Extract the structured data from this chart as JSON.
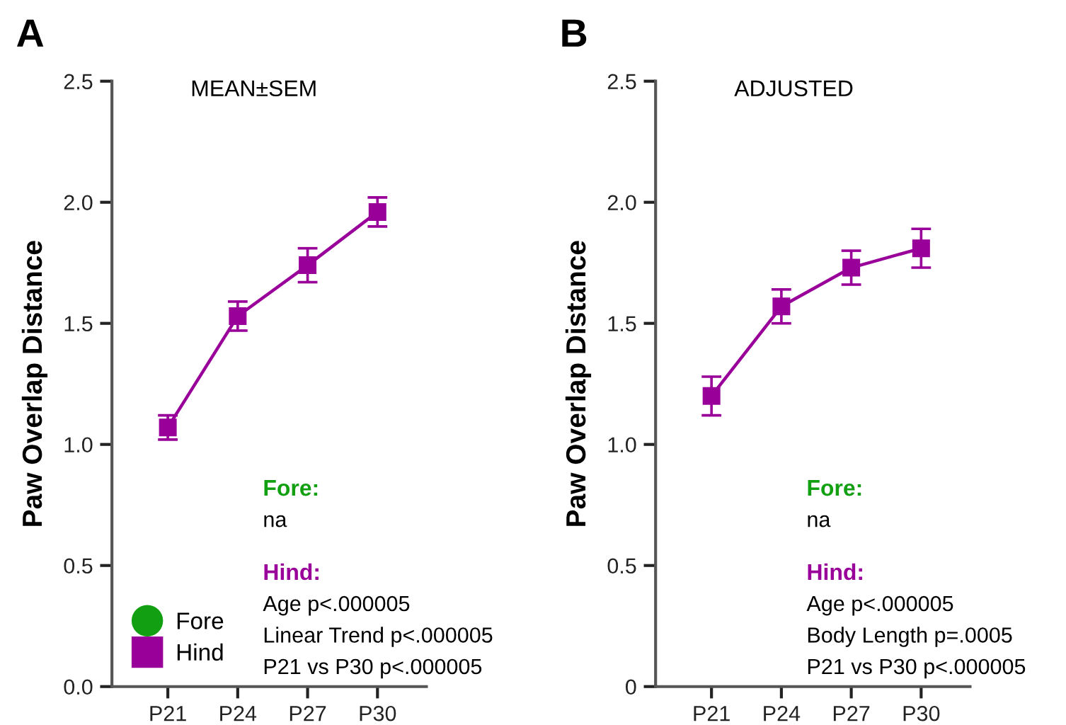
{
  "chart_data": [
    {
      "type": "line",
      "title": "MEAN±SEM",
      "ylabel": "Paw Overlap Distance",
      "categories": [
        "P21",
        "P24",
        "P27",
        "P30"
      ],
      "series": [
        {
          "name": "Fore",
          "color": "#12a012",
          "marker": "circle",
          "values": [
            null,
            null,
            null,
            null
          ]
        },
        {
          "name": "Hind",
          "color": "#990099",
          "marker": "square",
          "values": [
            1.07,
            1.53,
            1.74,
            1.96
          ],
          "errors": [
            0.05,
            0.06,
            0.07,
            0.06
          ]
        }
      ],
      "ylim": [
        0,
        2.5
      ],
      "yticks": [
        {
          "value": 0,
          "label": "0.0"
        },
        0.5,
        {
          "value": 1,
          "label": "1.0"
        },
        1.5,
        {
          "value": 2,
          "label": "2.0"
        },
        2.5
      ],
      "legend": "bottom left",
      "grid": false,
      "annotations": [
        "A",
        "Fore:",
        "na",
        "Hind:",
        "Age p<.000005",
        "Linear Trend p<.000005",
        "P21 vs P30 p<.000005"
      ]
    },
    {
      "type": "line",
      "title": "ADJUSTED",
      "ylabel": "Paw Overlap Distance",
      "categories": [
        "P21",
        "P24",
        "P27",
        "P30"
      ],
      "series": [
        {
          "color": "#990099",
          "marker": "square",
          "values": [
            1.2,
            1.57,
            1.73,
            1.81
          ],
          "errors": [
            0.08,
            0.07,
            0.07,
            0.08
          ]
        }
      ],
      "ylim": [
        0,
        2.5
      ],
      "yticks": [
        {
          "value": 0,
          "label": "0"
        },
        0.5,
        {
          "value": 1,
          "label": "1.0"
        },
        1.5,
        {
          "value": 2,
          "label": "2.0"
        },
        2.5
      ],
      "grid": false,
      "annotations": [
        "B",
        "Fore:",
        "na",
        "Hind:",
        "Age p<.000005",
        "Body Length p=.0005",
        "P21 vs P30 p<.000005"
      ]
    }
  ]
}
